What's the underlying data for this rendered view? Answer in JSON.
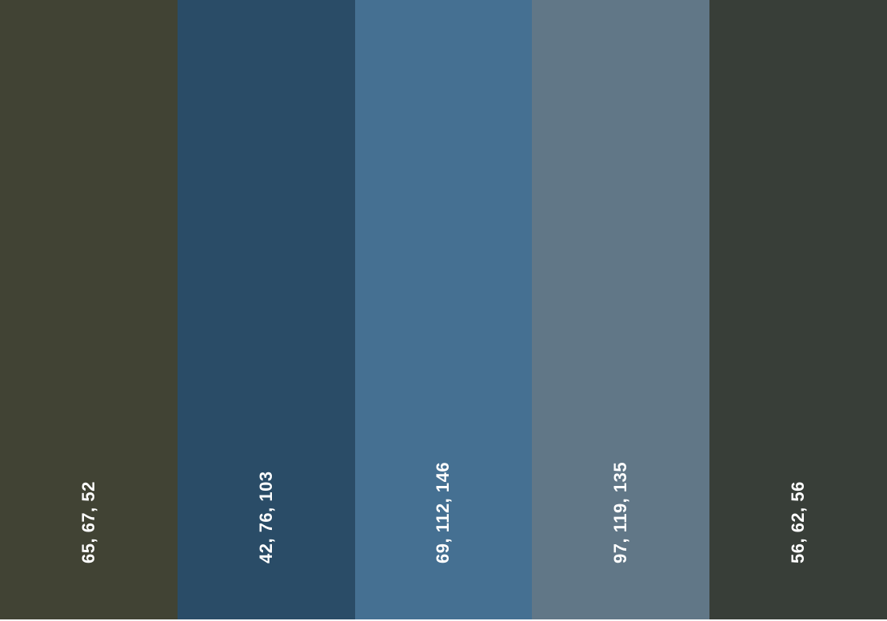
{
  "swatches": [
    {
      "label": "65, 67, 52",
      "color": "#414334"
    },
    {
      "label": "42, 76, 103",
      "color": "#2a4c67"
    },
    {
      "label": "69, 112, 146",
      "color": "#457092"
    },
    {
      "label": "97, 119, 135",
      "color": "#617787"
    },
    {
      "label": "56, 62, 56",
      "color": "#383e38"
    }
  ]
}
